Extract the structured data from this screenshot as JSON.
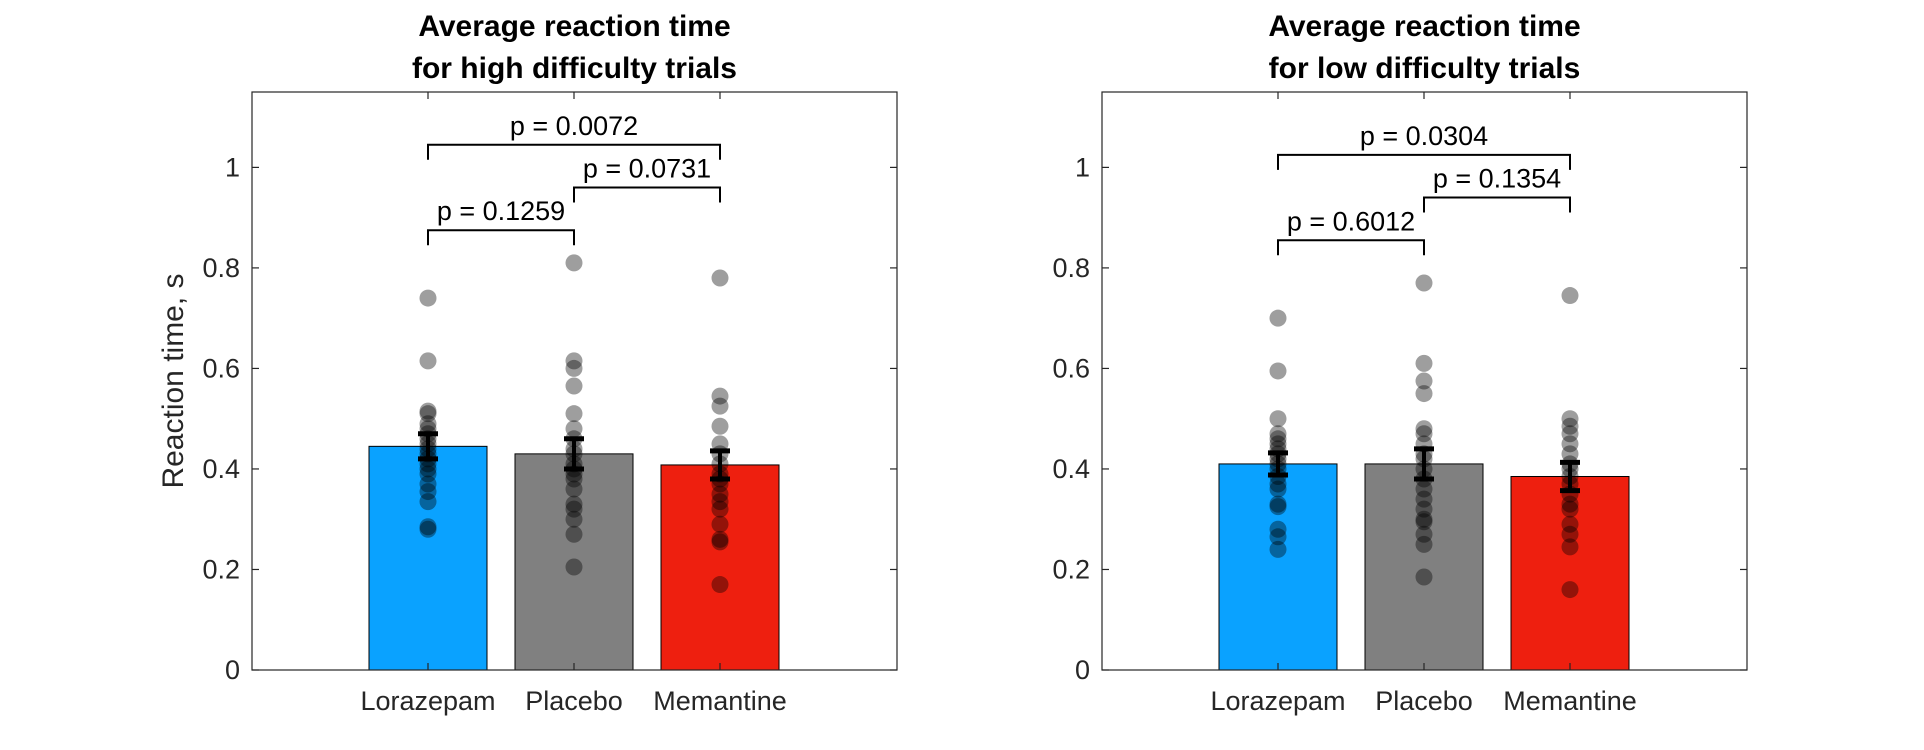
{
  "chart_data": [
    {
      "type": "bar",
      "title": [
        "Average reaction time",
        "for high difficulty trials"
      ],
      "ylabel": "Reaction time, s",
      "xlabel": "",
      "categories": [
        "Lorazepam",
        "Placebo",
        "Memantine"
      ],
      "values": [
        0.445,
        0.43,
        0.408
      ],
      "errors": [
        0.025,
        0.03,
        0.028
      ],
      "bar_colors": [
        "#0aa2ff",
        "#808080",
        "#ee1f0f"
      ],
      "ylim": [
        0,
        1.15
      ],
      "yticks": [
        0,
        0.2,
        0.4,
        0.6,
        0.8,
        1
      ],
      "ytick_labels": [
        "0",
        "0.2",
        "0.4",
        "0.6",
        "0.8",
        "1"
      ],
      "points": [
        [
          0.74,
          0.615,
          0.515,
          0.51,
          0.49,
          0.48,
          0.47,
          0.46,
          0.45,
          0.44,
          0.43,
          0.42,
          0.41,
          0.4,
          0.39,
          0.37,
          0.355,
          0.335,
          0.285,
          0.28
        ],
        [
          0.81,
          0.615,
          0.6,
          0.565,
          0.51,
          0.48,
          0.46,
          0.44,
          0.43,
          0.41,
          0.4,
          0.39,
          0.38,
          0.36,
          0.33,
          0.32,
          0.3,
          0.27,
          0.205
        ],
        [
          0.78,
          0.545,
          0.525,
          0.485,
          0.45,
          0.43,
          0.41,
          0.39,
          0.38,
          0.37,
          0.35,
          0.335,
          0.32,
          0.29,
          0.26,
          0.255,
          0.17
        ]
      ],
      "comparisons": [
        {
          "from": 0,
          "to": 1,
          "label": "p = 0.1259",
          "y": 0.875
        },
        {
          "from": 1,
          "to": 2,
          "label": "p = 0.0731",
          "y": 0.96
        },
        {
          "from": 0,
          "to": 2,
          "label": "p = 0.0072",
          "y": 1.045
        }
      ],
      "grid": false
    },
    {
      "type": "bar",
      "title": [
        "Average reaction time",
        "for low difficulty trials"
      ],
      "ylabel": "",
      "xlabel": "",
      "categories": [
        "Lorazepam",
        "Placebo",
        "Memantine"
      ],
      "values": [
        0.41,
        0.41,
        0.385
      ],
      "errors": [
        0.022,
        0.03,
        0.028
      ],
      "bar_colors": [
        "#0aa2ff",
        "#808080",
        "#ee1f0f"
      ],
      "ylim": [
        0,
        1.15
      ],
      "yticks": [
        0,
        0.2,
        0.4,
        0.6,
        0.8,
        1
      ],
      "ytick_labels": [
        "0",
        "0.2",
        "0.4",
        "0.6",
        "0.8",
        "1"
      ],
      "points": [
        [
          0.7,
          0.595,
          0.5,
          0.47,
          0.46,
          0.45,
          0.44,
          0.43,
          0.42,
          0.41,
          0.4,
          0.385,
          0.37,
          0.36,
          0.33,
          0.325,
          0.28,
          0.265,
          0.24
        ],
        [
          0.77,
          0.61,
          0.575,
          0.55,
          0.48,
          0.47,
          0.45,
          0.43,
          0.42,
          0.4,
          0.38,
          0.36,
          0.34,
          0.32,
          0.3,
          0.295,
          0.27,
          0.25,
          0.185
        ],
        [
          0.745,
          0.5,
          0.485,
          0.47,
          0.45,
          0.43,
          0.41,
          0.4,
          0.385,
          0.37,
          0.35,
          0.33,
          0.32,
          0.29,
          0.27,
          0.245,
          0.16
        ]
      ],
      "comparisons": [
        {
          "from": 0,
          "to": 1,
          "label": "p = 0.6012",
          "y": 0.855
        },
        {
          "from": 1,
          "to": 2,
          "label": "p = 0.1354",
          "y": 0.94
        },
        {
          "from": 0,
          "to": 2,
          "label": "p = 0.0304",
          "y": 1.025
        }
      ],
      "grid": false
    }
  ]
}
